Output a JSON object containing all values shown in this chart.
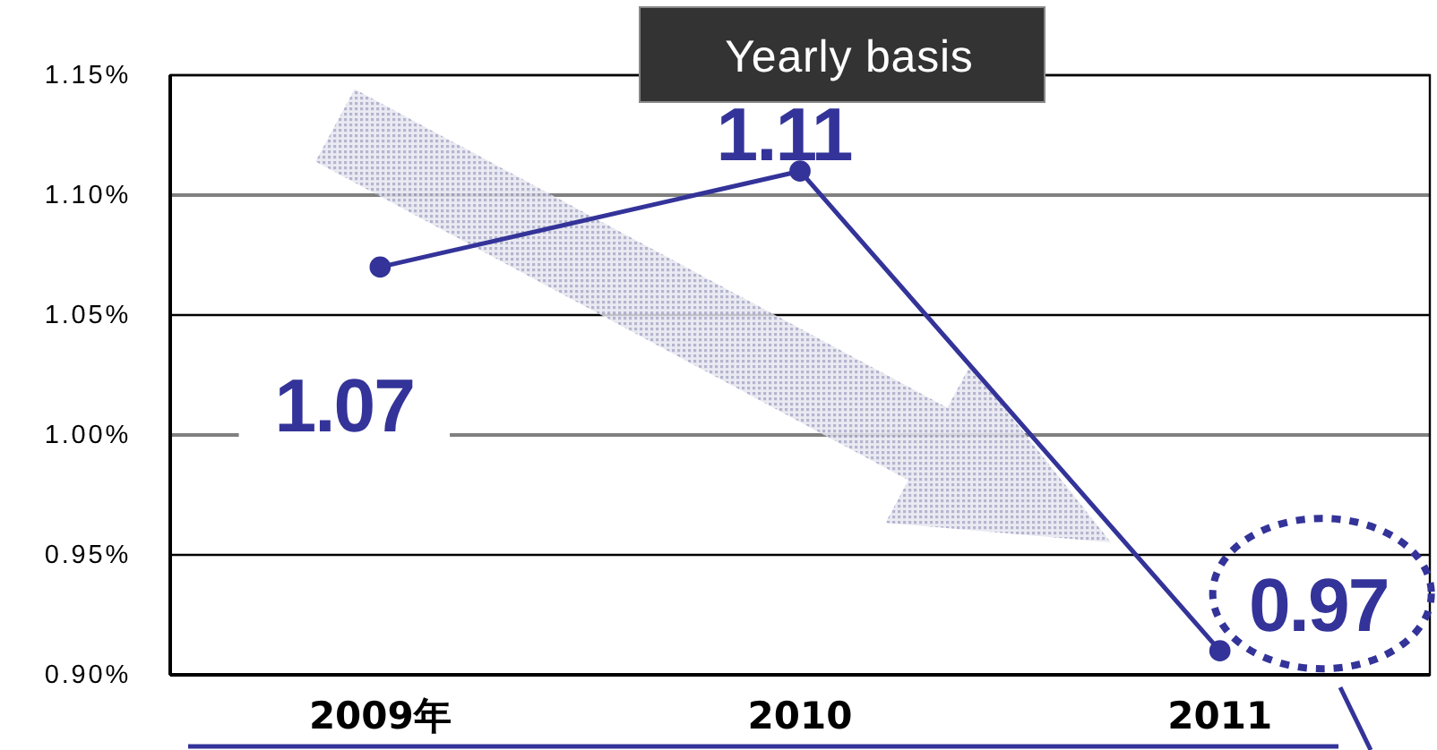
{
  "chart_data": {
    "type": "line",
    "title": "Yearly basis",
    "categories": [
      "2009年",
      "2010",
      "2011"
    ],
    "series": [
      {
        "color": "#333399",
        "values": [
          1.07,
          1.11,
          0.91
        ],
        "value_labels": [
          "1.07",
          "1.11",
          null
        ]
      }
    ],
    "annotations": [
      "0.97"
    ],
    "ylim": [
      0.9,
      1.15
    ],
    "yticks": [
      {
        "value": 0.9,
        "label": "0.90%"
      },
      {
        "value": 0.95,
        "label": "0.95%"
      },
      {
        "value": 1.0,
        "label": "1.00%"
      },
      {
        "value": 1.05,
        "label": "1.05%"
      },
      {
        "value": 1.1,
        "label": "1.10%"
      },
      {
        "value": 1.15,
        "label": "1.15%"
      }
    ],
    "grid": "y",
    "marker": "circle",
    "line_style": "solid"
  }
}
